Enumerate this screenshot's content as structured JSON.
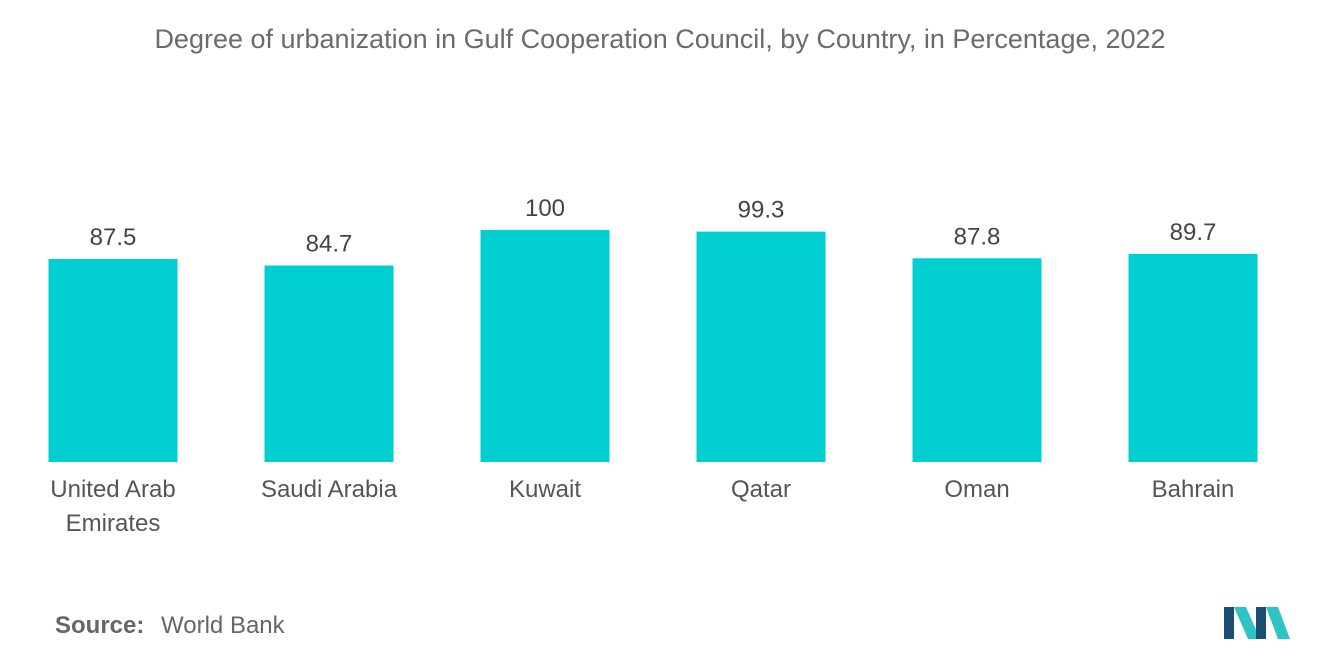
{
  "chart_data": {
    "type": "bar",
    "title": "Degree of urbanization in Gulf Cooperation Council, by Country, in Percentage, 2022",
    "categories": [
      [
        "United Arab",
        "Emirates"
      ],
      [
        "Saudi Arabia"
      ],
      [
        "Kuwait"
      ],
      [
        "Qatar"
      ],
      [
        "Oman"
      ],
      [
        "Bahrain"
      ]
    ],
    "values": [
      87.5,
      84.7,
      100,
      99.3,
      87.8,
      89.7
    ],
    "value_labels": [
      "87.5",
      "84.7",
      "100",
      "99.3",
      "87.8",
      "89.7"
    ],
    "xlabel": "",
    "ylabel": "",
    "ylim": [
      0,
      100
    ],
    "grid": false,
    "bar_color": "#00CED1"
  },
  "source": {
    "label": "Source:",
    "value": "World Bank"
  },
  "logo": {
    "icon": "mordor-logo-icon",
    "colors": [
      "#1B4F72",
      "#2EC4C4"
    ]
  }
}
